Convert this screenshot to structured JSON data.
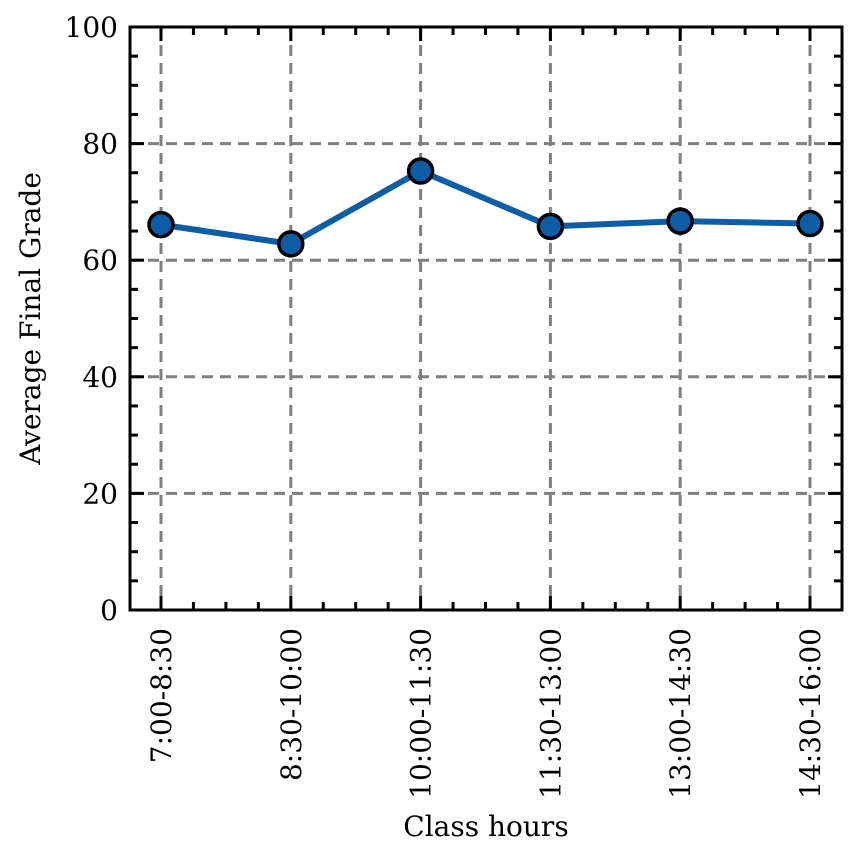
{
  "chart_data": {
    "type": "line",
    "title": "",
    "xlabel": "Class hours",
    "ylabel": "Average Final Grade",
    "ylim": [
      0,
      100
    ],
    "yticks": [
      0,
      20,
      40,
      60,
      80,
      100
    ],
    "grid": true,
    "categories": [
      "7:00-8:30",
      "8:30-10:00",
      "10:00-11:30",
      "11:30-13:00",
      "13:00-14:30",
      "14:30-16:00"
    ],
    "series": [
      {
        "values": [
          66.1,
          62.8,
          75.3,
          65.8,
          66.7,
          66.3
        ],
        "color": "#0c5da5",
        "marker": "circle"
      }
    ]
  }
}
